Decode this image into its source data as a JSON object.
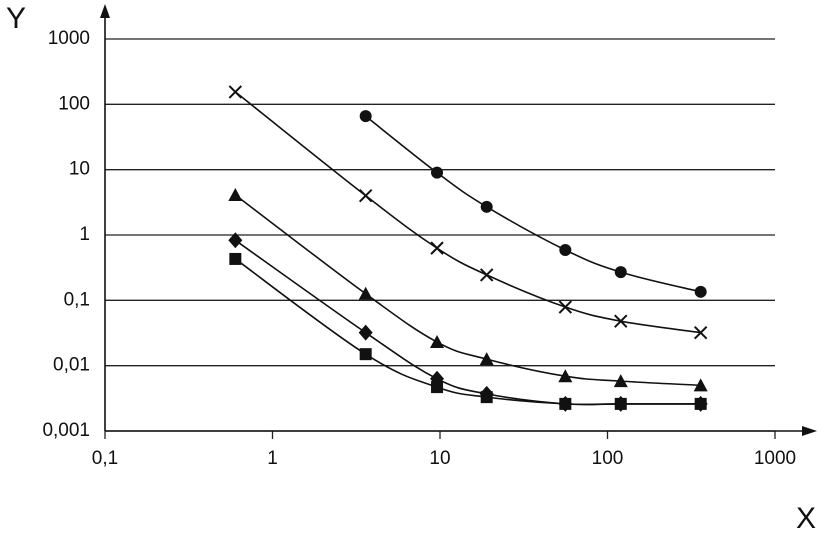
{
  "chart_data": {
    "type": "line",
    "x_label": "X",
    "y_label": "Y",
    "log_x": true,
    "log_y": true,
    "grid": "horizontal",
    "x": [
      0.6,
      3.6,
      9.6,
      19,
      56,
      120,
      360
    ],
    "series": [
      {
        "marker": "circle",
        "color": "#111111",
        "values": [
          null,
          66,
          9,
          2.7,
          0.59,
          0.27,
          0.135
        ]
      },
      {
        "marker": "cross",
        "color": "#111111",
        "values": [
          155,
          4,
          0.63,
          0.245,
          0.079,
          0.048,
          0.032
        ]
      },
      {
        "marker": "triangle",
        "color": "#111111",
        "values": [
          4.1,
          0.126,
          0.023,
          0.0126,
          0.0069,
          0.0058,
          0.005
        ]
      },
      {
        "marker": "diamond",
        "color": "#111111",
        "values": [
          0.83,
          0.032,
          0.0063,
          0.0037,
          0.0026,
          0.0026,
          0.0026
        ]
      },
      {
        "marker": "square",
        "color": "#111111",
        "values": [
          0.43,
          0.015,
          0.0047,
          0.0033,
          0.0026,
          0.0026,
          0.0026
        ]
      }
    ],
    "xlim": [
      0.1,
      1000
    ],
    "ylim": [
      0.001,
      1000
    ],
    "xticks": [
      {
        "value": 0.1,
        "label": "0,1"
      },
      1,
      10,
      100,
      1000
    ],
    "yticks": [
      {
        "value": 0.001,
        "label": "0,001"
      },
      {
        "value": 0.01,
        "label": "0,01"
      },
      {
        "value": 0.1,
        "label": "0,1"
      },
      1,
      10,
      100,
      1000
    ]
  }
}
